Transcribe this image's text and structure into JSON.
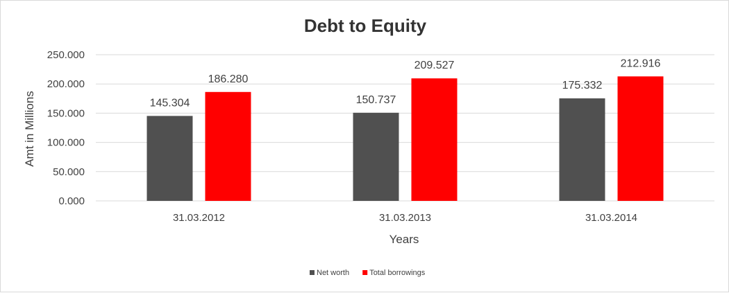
{
  "chart_data": {
    "type": "bar",
    "title": "Debt to Equity",
    "xlabel": "Years",
    "ylabel": "Amt in Millions",
    "categories": [
      "31.03.2012",
      "31.03.2013",
      "31.03.2014"
    ],
    "series": [
      {
        "name": "Net worth",
        "color": "#505050",
        "values": [
          145.304,
          150.737,
          175.332
        ],
        "labels": [
          "145.304",
          "150.737",
          "175.332"
        ]
      },
      {
        "name": "Total borrowings",
        "color": "#ff0000",
        "values": [
          186.28,
          209.527,
          212.916
        ],
        "labels": [
          "186.280",
          "209.527",
          "212.916"
        ]
      }
    ],
    "yticks": [
      "0.000",
      "50.000",
      "100.000",
      "150.000",
      "200.000",
      "250.000"
    ],
    "ylim": [
      0,
      250
    ],
    "grid": true,
    "legend_position": "bottom"
  }
}
